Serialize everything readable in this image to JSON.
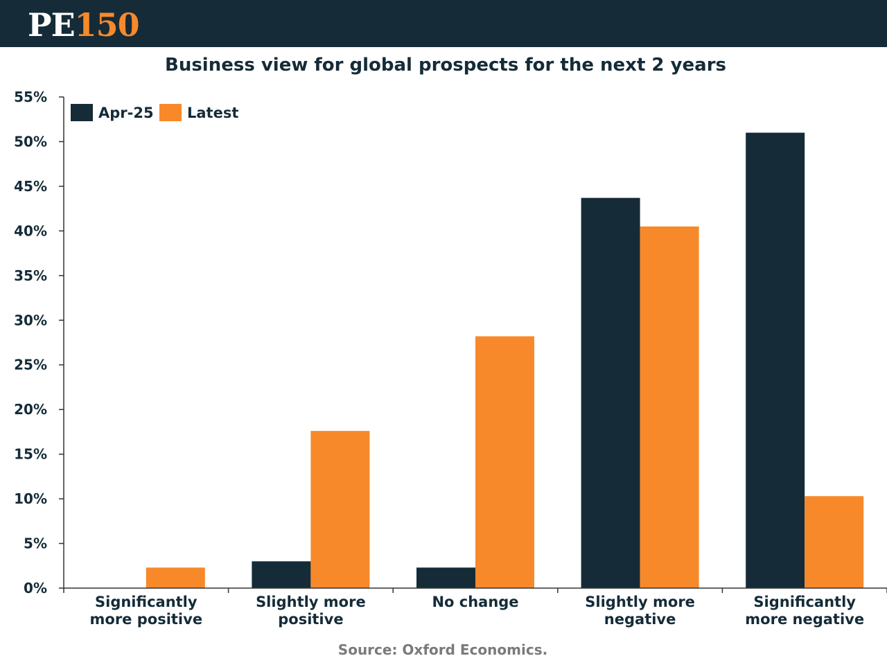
{
  "header": {
    "logo_pe": "PE",
    "logo_num": "150"
  },
  "source": "Source: Oxford Economics.",
  "chart_data": {
    "type": "bar",
    "title": "Business view for global prospects for the next 2 years",
    "xlabel": "",
    "ylabel": "",
    "categories": [
      [
        "Significantly",
        "more positive"
      ],
      [
        "Slightly more",
        "positive"
      ],
      [
        "No change"
      ],
      [
        "Slightly more",
        "negative"
      ],
      [
        "Significantly",
        "more negative"
      ]
    ],
    "series": [
      {
        "name": "Apr-25",
        "color": "#152b38",
        "values": [
          0,
          3.0,
          2.3,
          43.7,
          51.0
        ]
      },
      {
        "name": "Latest",
        "color": "#f7892a",
        "values": [
          2.3,
          17.6,
          28.2,
          40.5,
          10.3
        ]
      }
    ],
    "ylim": [
      0,
      55
    ],
    "yticks": [
      0,
      5,
      10,
      15,
      20,
      25,
      30,
      35,
      40,
      45,
      50,
      55
    ],
    "ytick_suffix": "%",
    "grid": false,
    "legend": "top-left"
  }
}
